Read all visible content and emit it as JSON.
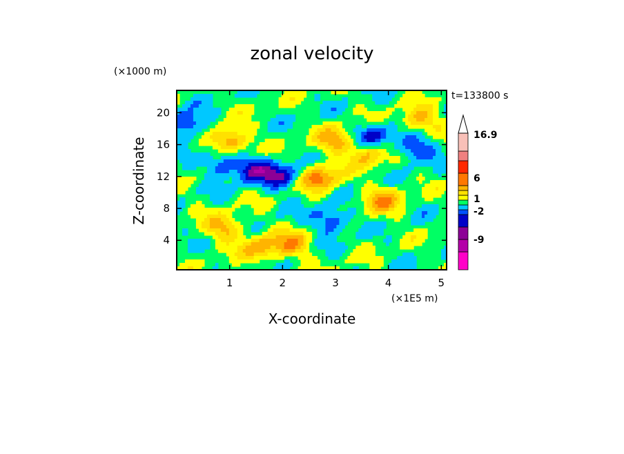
{
  "chart_data": {
    "type": "heatmap",
    "title": "zonal velocity",
    "xlabel": "X-coordinate",
    "ylabel": "Z-coordinate",
    "x_unit": "(×1E5 m)",
    "y_unit": "(×1000 m)",
    "time_label": "t=133800 s",
    "xlim": [
      0,
      5.1
    ],
    "ylim": [
      0.3,
      22.8
    ],
    "x_ticks": [
      "1",
      "2",
      "3",
      "4",
      "5"
    ],
    "y_ticks": [
      "4",
      "8",
      "12",
      "16",
      "20"
    ],
    "colorbar": {
      "colors": [
        "#ff00c8",
        "#b400a8",
        "#8c0096",
        "#0000c8",
        "#0050ff",
        "#00c8ff",
        "#00ff64",
        "#ffff00",
        "#ffe100",
        "#ffb400",
        "#ff7800",
        "#ff2800",
        "#f08080",
        "#f8c0b8"
      ],
      "labels": [
        "-9",
        "-2",
        "1",
        "6",
        "16.9"
      ],
      "extend": "max"
    },
    "features": [
      {
        "x": 1.5,
        "z": 12.8,
        "level": 3
      },
      {
        "x": 0.9,
        "z": 13.5,
        "level": 3
      },
      {
        "x": 2.0,
        "z": 12.0,
        "level": 3
      },
      {
        "x": 0.2,
        "z": 18.5,
        "level": 3
      },
      {
        "x": 2.9,
        "z": 6.5,
        "level": 3
      },
      {
        "x": 4.5,
        "z": 15.5,
        "level": 3
      },
      {
        "x": 3.7,
        "z": 17.0,
        "level": 3
      },
      {
        "x": 2.7,
        "z": 11.8,
        "level": 10
      },
      {
        "x": 1.0,
        "z": 16.5,
        "level": 10
      },
      {
        "x": 0.9,
        "z": 5.5,
        "level": 9
      },
      {
        "x": 4.6,
        "z": 19.0,
        "level": 9
      },
      {
        "x": 3.6,
        "z": 15.0,
        "level": 9
      },
      {
        "x": 2.2,
        "z": 3.5,
        "level": 9
      },
      {
        "x": 1.6,
        "z": 3.0,
        "level": 9
      },
      {
        "x": 3.9,
        "z": 9.0,
        "level": 9
      },
      {
        "x": 3.0,
        "z": 16.5,
        "level": 9
      }
    ]
  }
}
